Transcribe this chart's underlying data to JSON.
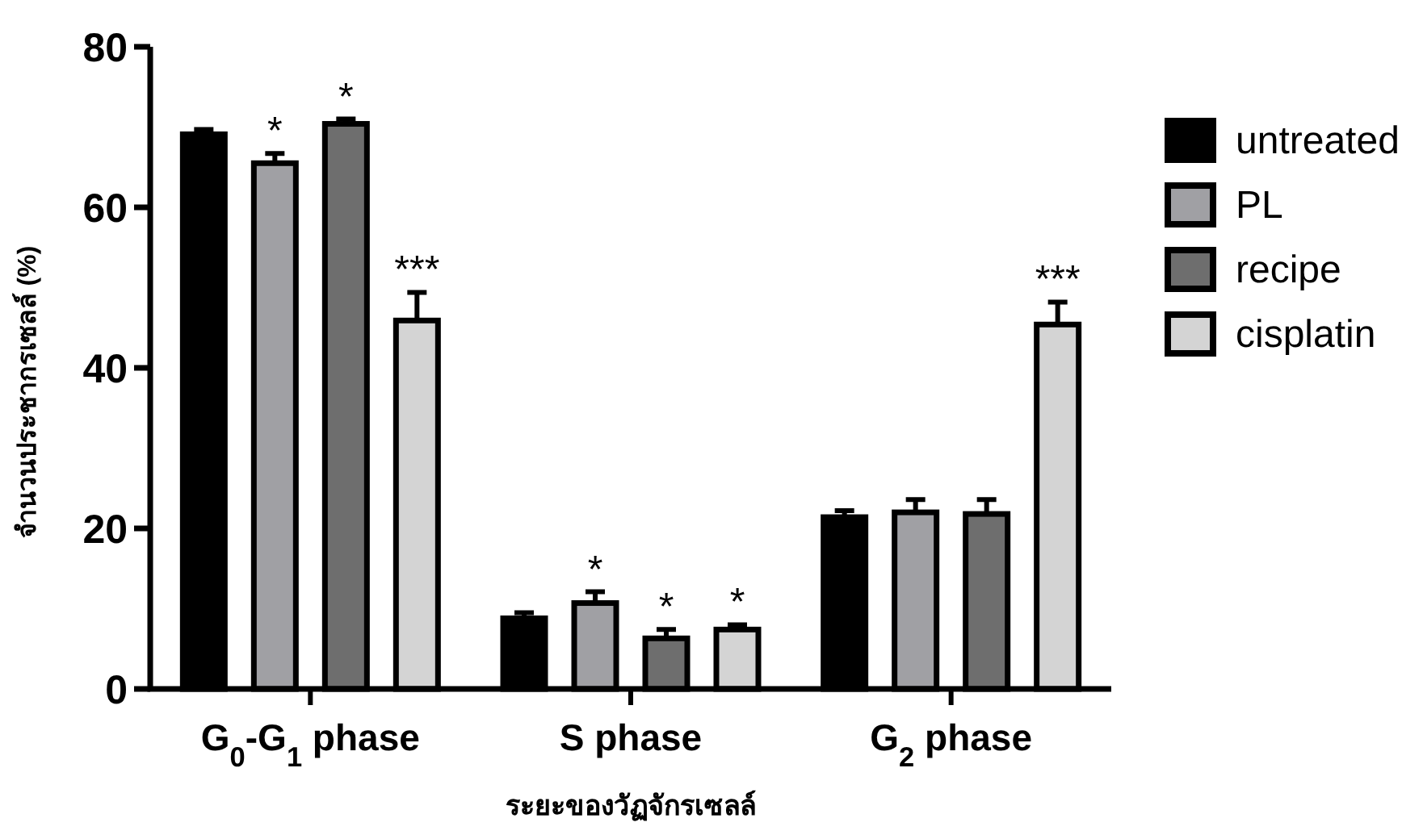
{
  "chart_data": {
    "type": "bar",
    "xlabel": "ระยะของวัฏจักรเซลล์",
    "ylabel": "จำนวนประชากรเซลล์ (%)",
    "categories": [
      "G$_{0}$-G$_{1}$ phase",
      "S phase",
      "G$_{2}$ phase"
    ],
    "ylim": [
      0,
      80
    ],
    "yticks": [
      0,
      20,
      40,
      60,
      80
    ],
    "legend": "right",
    "series": [
      {
        "name": "untreated",
        "color": "#000000",
        "values": [
          69.1,
          8.8,
          21.4
        ],
        "errors": [
          0.6,
          0.7,
          0.8
        ]
      },
      {
        "name": "PL",
        "color": "#a0a0a4",
        "values": [
          65.5,
          10.7,
          22.0
        ],
        "errors": [
          1.2,
          1.4,
          1.6
        ],
        "value_labels": [
          "*",
          "*",
          null
        ]
      },
      {
        "name": "recipe",
        "color": "#6e6e6e",
        "values": [
          70.4,
          6.3,
          21.8
        ],
        "errors": [
          0.6,
          1.1,
          1.8
        ],
        "value_labels": [
          "*",
          "*",
          null
        ]
      },
      {
        "name": "cisplatin",
        "color": "#d4d4d4",
        "values": [
          45.9,
          7.4,
          45.4
        ],
        "errors": [
          3.5,
          0.6,
          2.8
        ],
        "value_labels": [
          "***",
          "*",
          "***"
        ]
      }
    ]
  }
}
